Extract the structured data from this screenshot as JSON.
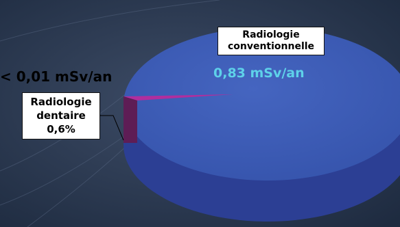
{
  "chart_data": {
    "type": "pie",
    "title": "",
    "slices": [
      {
        "label_lines": [
          "Radiologie",
          "conventionnelle"
        ],
        "value_label": "0,83 mSv/an",
        "color": "#3a5cb3"
      },
      {
        "label_lines": [
          "Radiologie",
          "dentaire",
          "0,6%"
        ],
        "value_label": "< 0,01 mSv/an",
        "color": "#5e1d55"
      }
    ],
    "percentages": [
      99.4,
      0.6
    ],
    "style": "3d-exploded"
  },
  "colors": {
    "background": "#2b3a52",
    "conv_top": "#3f5fbb",
    "conv_side": "#2c3f94",
    "dent_slice": "#5e1d55",
    "conv_value": "#5ed1e9"
  }
}
